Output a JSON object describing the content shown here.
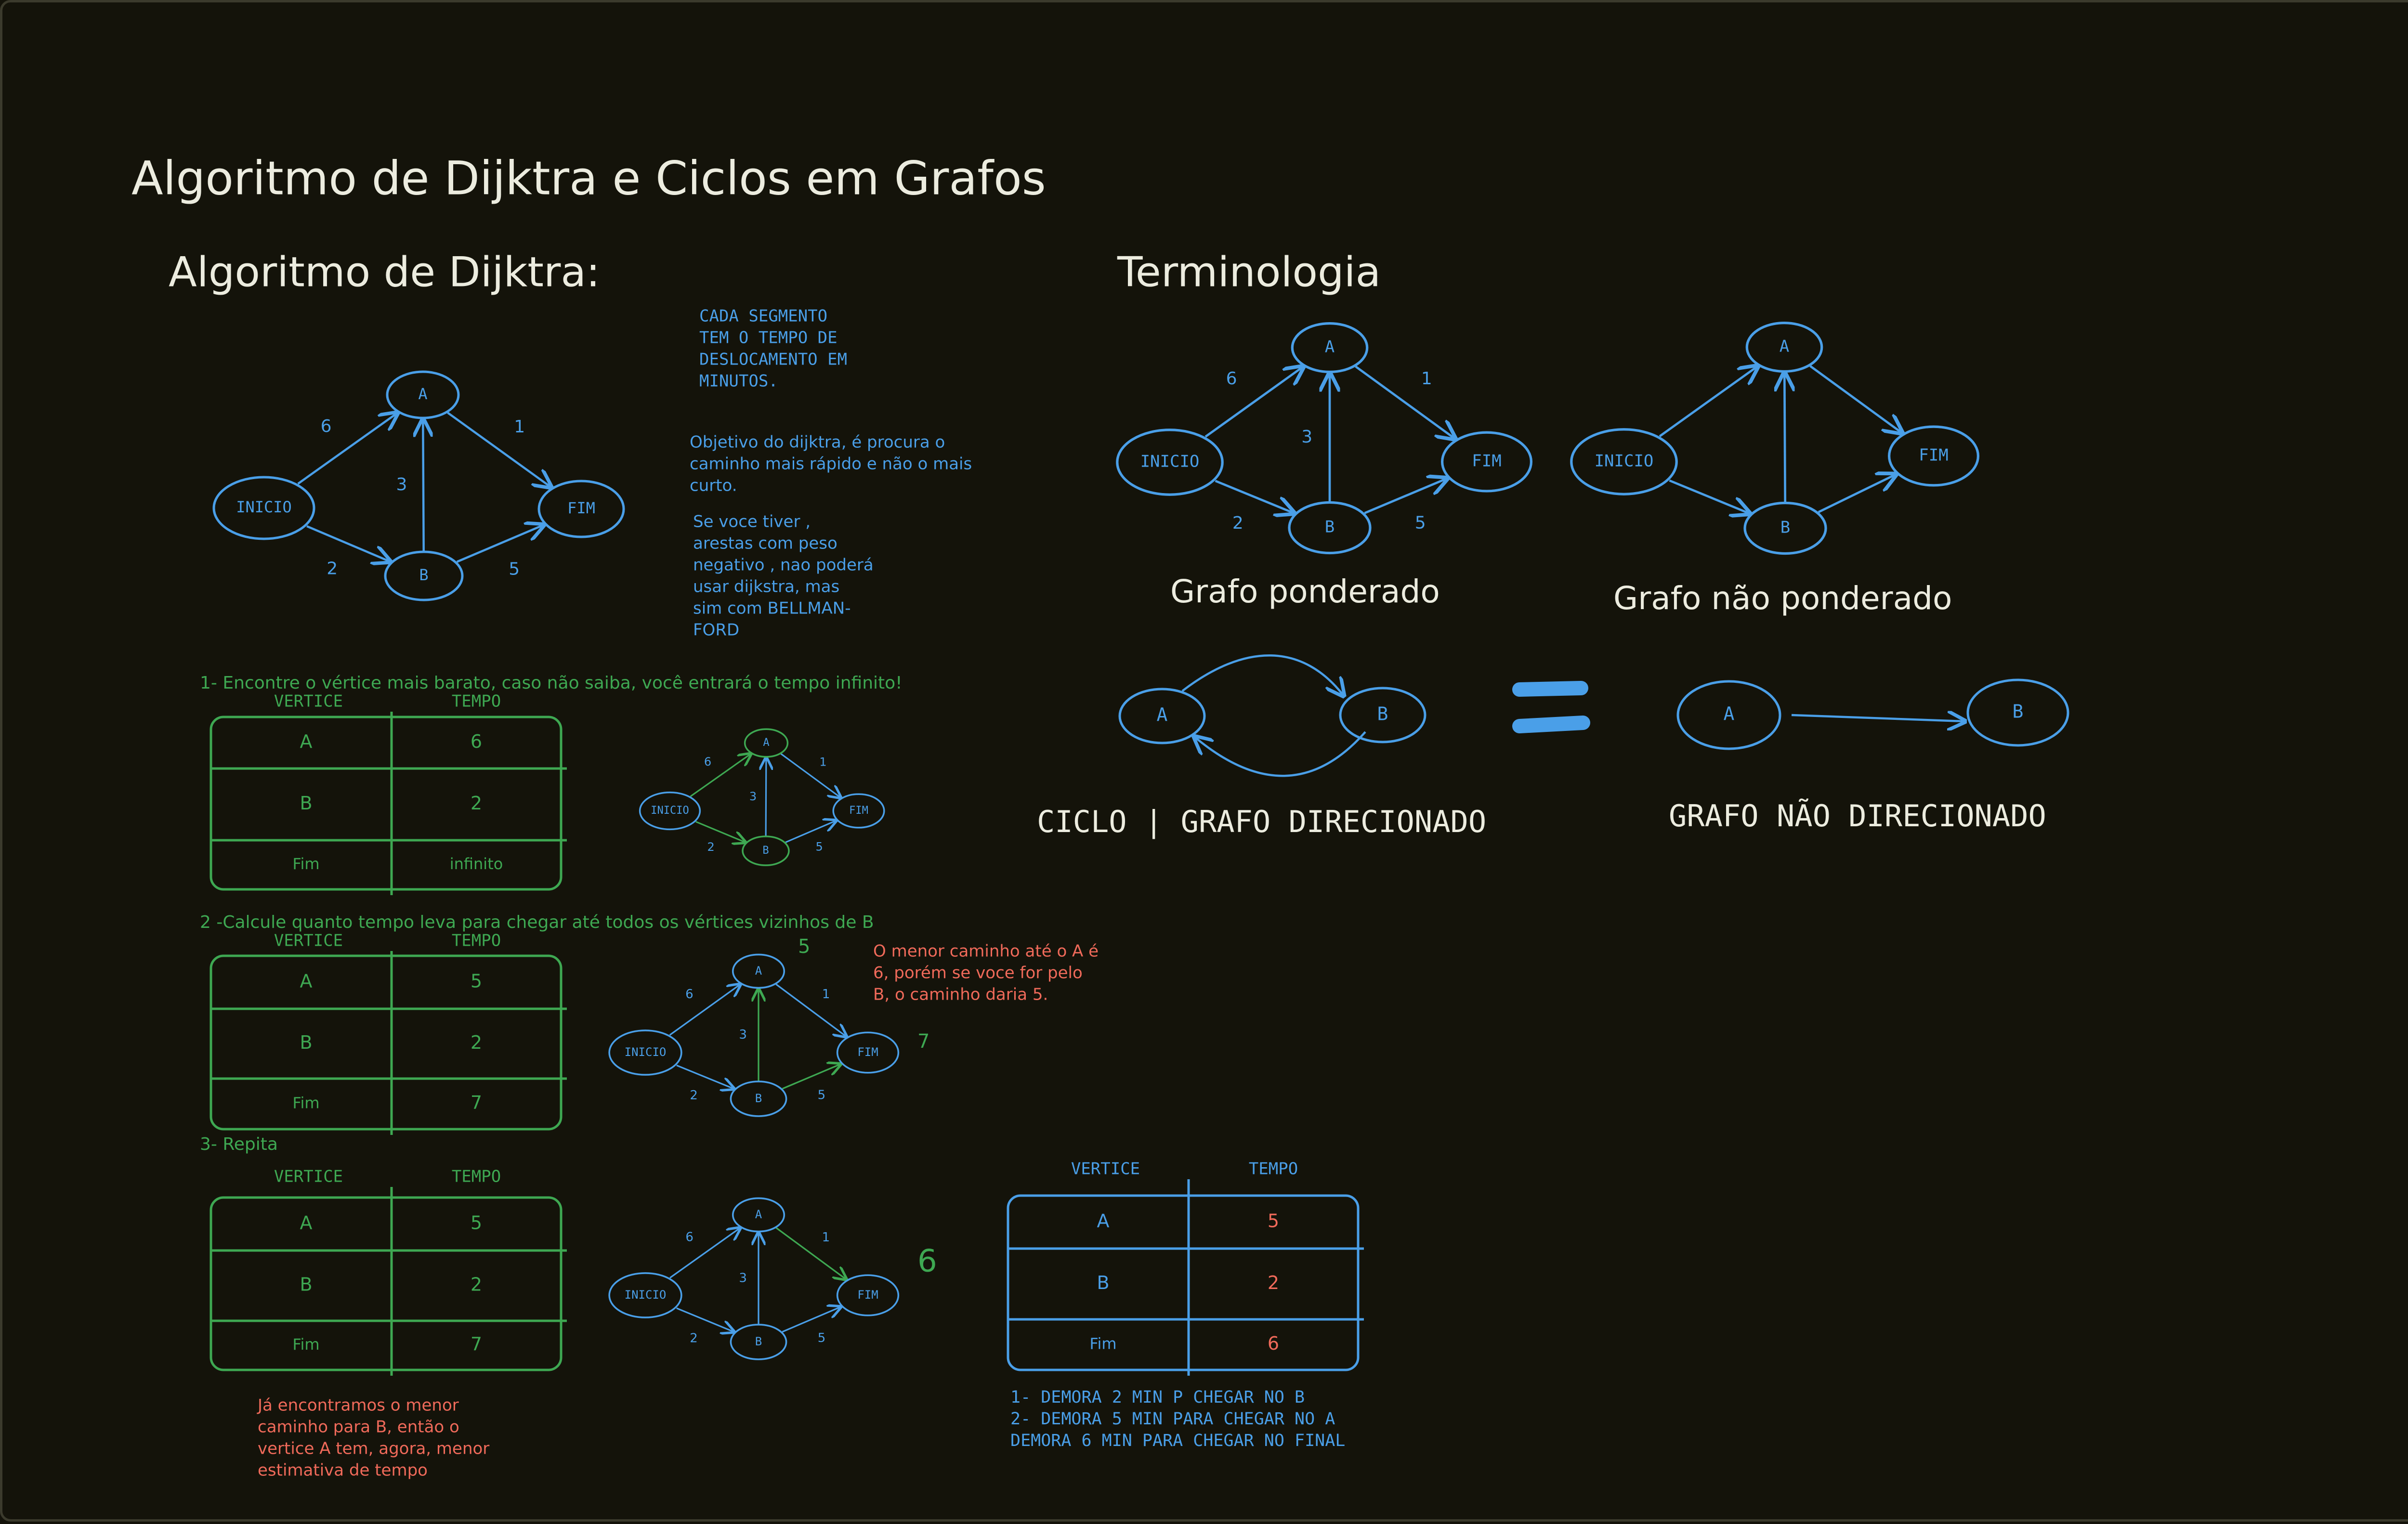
{
  "colors": {
    "background": "#14130a",
    "white": "#ececdf",
    "blue": "#4a9fe8",
    "green": "#3ea852",
    "red": "#f06a5a"
  },
  "page_title": "Algoritmo de Dijktra e Ciclos em Grafos",
  "dijkstra": {
    "section_title": "Algoritmo de Dijktra:",
    "note_segment": [
      "CADA SEGMENTO",
      "TEM O TEMPO DE",
      "DESLOCAMENTO EM",
      "MINUTOS."
    ],
    "note_objective": [
      "Objetivo do dijktra, é procura o",
      "caminho mais rápido e não o mais",
      "curto."
    ],
    "note_negative": [
      "Se voce tiver ,",
      "arestas com peso",
      "negativo , nao poderá",
      "usar dijkstra, mas",
      "sim com BELLMAN-",
      "FORD"
    ],
    "nodes": {
      "start": "INICIO",
      "a": "A",
      "b": "B",
      "end": "FIM"
    },
    "weights": {
      "start_a": "6",
      "start_b": "2",
      "b_a": "3",
      "a_end": "1",
      "b_end": "5"
    },
    "table_headers": {
      "vertex": "VERTICE",
      "time": "TEMPO"
    },
    "step1": {
      "label": "1- Encontre o vértice mais barato, caso não saiba, você entrará o tempo infinito!",
      "rows": [
        {
          "v": "A",
          "t": "6"
        },
        {
          "v": "B",
          "t": "2"
        },
        {
          "v": "Fim",
          "t": "infinito"
        }
      ]
    },
    "step2": {
      "label": "2 -Calcule quanto tempo leva para chegar até todos os vértices vizinhos de B",
      "rows": [
        {
          "v": "A",
          "t": "5"
        },
        {
          "v": "B",
          "t": "2"
        },
        {
          "v": "Fim",
          "t": "7"
        }
      ],
      "annot_a": "5",
      "annot_end": "7",
      "note": [
        "O menor caminho até o A é",
        "6, porém se voce for pelo",
        "B, o caminho daria 5."
      ]
    },
    "step3": {
      "label": "3- Repita",
      "rows": [
        {
          "v": "A",
          "t": "5"
        },
        {
          "v": "B",
          "t": "2"
        },
        {
          "v": "Fim",
          "t": "7"
        }
      ],
      "annot_end": "6",
      "note": [
        "Já encontramos o menor",
        "caminho para B, então o",
        "vertice A tem, agora, menor",
        "estimativa de tempo"
      ]
    },
    "final_table": {
      "rows": [
        {
          "v": "A",
          "t": "5"
        },
        {
          "v": "B",
          "t": "2"
        },
        {
          "v": "Fim",
          "t": "6"
        }
      ],
      "summary": [
        "1- DEMORA 2 MIN P CHEGAR NO B",
        "2- DEMORA 5 MIN PARA CHEGAR NO A",
        "DEMORA 6 MIN PARA CHEGAR NO FINAL"
      ]
    }
  },
  "terminology": {
    "section_title": "Terminologia",
    "weighted_caption": "Grafo ponderado",
    "unweighted_caption": "Grafo não ponderado",
    "cycle_caption": "CICLO | GRAFO DIRECIONADO",
    "undirected_caption": "GRAFO NÃO DIRECIONADO"
  }
}
